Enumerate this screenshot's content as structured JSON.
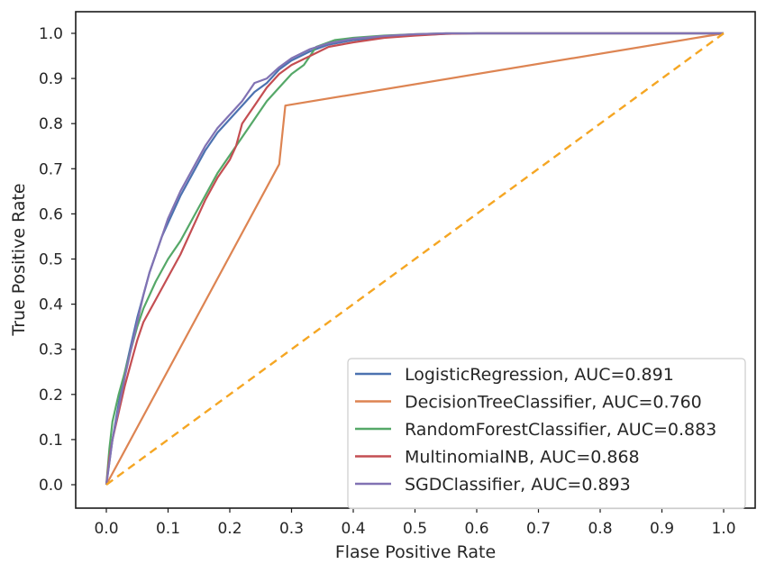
{
  "chart_data": {
    "type": "line",
    "title": "",
    "xlabel": "Flase Positive Rate",
    "ylabel": "True Positive Rate",
    "xlim": [
      -0.05,
      1.05
    ],
    "ylim": [
      -0.05,
      1.05
    ],
    "xticks": [
      "0.0",
      "0.1",
      "0.2",
      "0.3",
      "0.4",
      "0.5",
      "0.6",
      "0.7",
      "0.8",
      "0.9",
      "1.0"
    ],
    "yticks": [
      "0.0",
      "0.1",
      "0.2",
      "0.3",
      "0.4",
      "0.5",
      "0.6",
      "0.7",
      "0.8",
      "0.9",
      "1.0"
    ],
    "grid": false,
    "legend_position": "lower-right",
    "series": [
      {
        "name": "LogisticRegression, AUC=0.891",
        "color": "#4c72b0",
        "dash": false,
        "x": [
          0,
          0.005,
          0.01,
          0.02,
          0.03,
          0.04,
          0.05,
          0.06,
          0.07,
          0.08,
          0.09,
          0.1,
          0.12,
          0.14,
          0.16,
          0.18,
          0.2,
          0.22,
          0.24,
          0.26,
          0.28,
          0.3,
          0.33,
          0.36,
          0.4,
          0.45,
          0.5,
          0.55,
          0.6,
          0.7,
          0.8,
          0.9,
          1.0
        ],
        "y": [
          0,
          0.05,
          0.1,
          0.18,
          0.25,
          0.31,
          0.37,
          0.42,
          0.47,
          0.51,
          0.55,
          0.58,
          0.64,
          0.69,
          0.74,
          0.78,
          0.81,
          0.84,
          0.87,
          0.89,
          0.92,
          0.94,
          0.96,
          0.975,
          0.985,
          0.992,
          0.996,
          0.999,
          1.0,
          1.0,
          1.0,
          1.0,
          1.0
        ]
      },
      {
        "name": "DecisionTreeClassifier, AUC=0.760",
        "color": "#dd8452",
        "dash": false,
        "x": [
          0,
          0.28,
          0.29,
          1.0
        ],
        "y": [
          0,
          0.71,
          0.84,
          1.0
        ]
      },
      {
        "name": "RandomForestClassifier, AUC=0.883",
        "color": "#55a868",
        "dash": false,
        "x": [
          0,
          0.005,
          0.01,
          0.02,
          0.03,
          0.04,
          0.05,
          0.06,
          0.08,
          0.1,
          0.12,
          0.14,
          0.16,
          0.18,
          0.2,
          0.22,
          0.24,
          0.26,
          0.28,
          0.3,
          0.32,
          0.34,
          0.37,
          0.4,
          0.45,
          0.5,
          0.55,
          0.6,
          0.7,
          0.8,
          0.9,
          1.0
        ],
        "y": [
          0,
          0.08,
          0.14,
          0.2,
          0.25,
          0.3,
          0.35,
          0.39,
          0.45,
          0.5,
          0.54,
          0.59,
          0.64,
          0.69,
          0.73,
          0.77,
          0.81,
          0.85,
          0.88,
          0.91,
          0.93,
          0.97,
          0.985,
          0.99,
          0.995,
          0.998,
          1.0,
          1.0,
          1.0,
          1.0,
          1.0,
          1.0
        ]
      },
      {
        "name": "MultinomialNB, AUC=0.868",
        "color": "#c44e52",
        "dash": false,
        "x": [
          0,
          0.005,
          0.01,
          0.02,
          0.03,
          0.04,
          0.05,
          0.06,
          0.08,
          0.1,
          0.12,
          0.14,
          0.16,
          0.18,
          0.2,
          0.21,
          0.22,
          0.24,
          0.26,
          0.28,
          0.3,
          0.33,
          0.36,
          0.4,
          0.45,
          0.5,
          0.55,
          0.6,
          0.7,
          0.8,
          0.9,
          1.0
        ],
        "y": [
          0,
          0.06,
          0.1,
          0.16,
          0.22,
          0.27,
          0.32,
          0.36,
          0.41,
          0.46,
          0.51,
          0.57,
          0.63,
          0.68,
          0.72,
          0.75,
          0.8,
          0.84,
          0.88,
          0.91,
          0.93,
          0.95,
          0.97,
          0.98,
          0.99,
          0.995,
          0.999,
          1.0,
          1.0,
          1.0,
          1.0,
          1.0
        ]
      },
      {
        "name": "SGDClassifier, AUC=0.893",
        "color": "#8172b3",
        "dash": false,
        "x": [
          0,
          0.005,
          0.01,
          0.02,
          0.03,
          0.04,
          0.05,
          0.06,
          0.07,
          0.08,
          0.09,
          0.1,
          0.12,
          0.14,
          0.16,
          0.18,
          0.2,
          0.22,
          0.24,
          0.26,
          0.28,
          0.3,
          0.33,
          0.36,
          0.4,
          0.45,
          0.5,
          0.55,
          0.6,
          0.7,
          0.8,
          0.9,
          1.0
        ],
        "y": [
          0,
          0.05,
          0.1,
          0.17,
          0.24,
          0.3,
          0.36,
          0.42,
          0.47,
          0.51,
          0.55,
          0.59,
          0.65,
          0.7,
          0.75,
          0.79,
          0.82,
          0.85,
          0.89,
          0.9,
          0.925,
          0.945,
          0.965,
          0.978,
          0.988,
          0.994,
          0.998,
          1.0,
          1.0,
          1.0,
          1.0,
          1.0,
          1.0
        ]
      },
      {
        "name": "",
        "color": "#f5a623",
        "dash": true,
        "x": [
          0,
          1
        ],
        "y": [
          0,
          1
        ]
      }
    ]
  }
}
